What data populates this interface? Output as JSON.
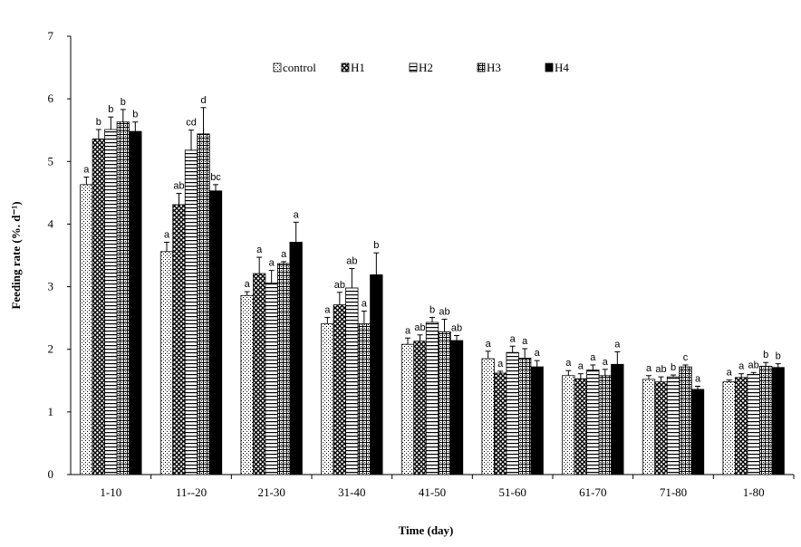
{
  "chart_data": {
    "type": "bar",
    "xlabel": "Time (day)",
    "ylabel": "Feeding rate (%. d⁻¹)",
    "ylim": [
      0,
      7
    ],
    "yticks": [
      "0",
      "1",
      "2",
      "3",
      "4",
      "5",
      "6",
      "7"
    ],
    "legend_position": "top",
    "categories": [
      "1-10",
      "11--20",
      "21-30",
      "31-40",
      "41-50",
      "51-60",
      "61-70",
      "71-80",
      "1-80"
    ],
    "series": [
      {
        "name": "control",
        "pattern": "dots",
        "values": [
          4.63,
          3.56,
          2.86,
          2.41,
          2.08,
          1.85,
          1.58,
          1.52,
          1.48
        ],
        "errors": [
          0.12,
          0.15,
          0.06,
          0.1,
          0.1,
          0.12,
          0.08,
          0.06,
          0.03
        ],
        "labels": [
          "a",
          "a",
          "a",
          "a",
          "a",
          "a",
          "a",
          "a",
          "a"
        ]
      },
      {
        "name": "H1",
        "pattern": "crosshatch",
        "values": [
          5.36,
          4.31,
          3.21,
          2.71,
          2.13,
          1.62,
          1.53,
          1.48,
          1.55
        ],
        "errors": [
          0.15,
          0.18,
          0.26,
          0.2,
          0.1,
          0.03,
          0.08,
          0.08,
          0.06
        ],
        "labels": [
          "b",
          "ab",
          "a",
          "ab",
          "ab",
          "a",
          "a",
          "ab",
          "a"
        ]
      },
      {
        "name": "H2",
        "pattern": "hlines",
        "values": [
          5.51,
          5.18,
          3.06,
          2.98,
          2.43,
          1.95,
          1.67,
          1.56,
          1.6
        ],
        "errors": [
          0.2,
          0.32,
          0.2,
          0.31,
          0.08,
          0.1,
          0.08,
          0.03,
          0.03
        ],
        "labels": [
          "b",
          "cd",
          "a",
          "ab",
          "b",
          "a",
          "a",
          "b",
          "ab"
        ]
      },
      {
        "name": "H3",
        "pattern": "grid",
        "values": [
          5.63,
          5.44,
          3.37,
          2.41,
          2.28,
          1.86,
          1.58,
          1.72,
          1.73
        ],
        "errors": [
          0.2,
          0.42,
          0.03,
          0.2,
          0.2,
          0.15,
          0.1,
          0.03,
          0.06
        ],
        "labels": [
          "b",
          "d",
          "a",
          "a",
          "ab",
          "a",
          "a",
          "c",
          "b"
        ]
      },
      {
        "name": "H4",
        "pattern": "solid",
        "values": [
          5.48,
          4.53,
          3.71,
          3.19,
          2.14,
          1.72,
          1.76,
          1.36,
          1.71
        ],
        "errors": [
          0.15,
          0.1,
          0.32,
          0.35,
          0.08,
          0.1,
          0.2,
          0.05,
          0.06
        ],
        "labels": [
          "b",
          "bc",
          "a",
          "b",
          "ab",
          "a",
          "a",
          "a",
          "b"
        ]
      }
    ]
  }
}
